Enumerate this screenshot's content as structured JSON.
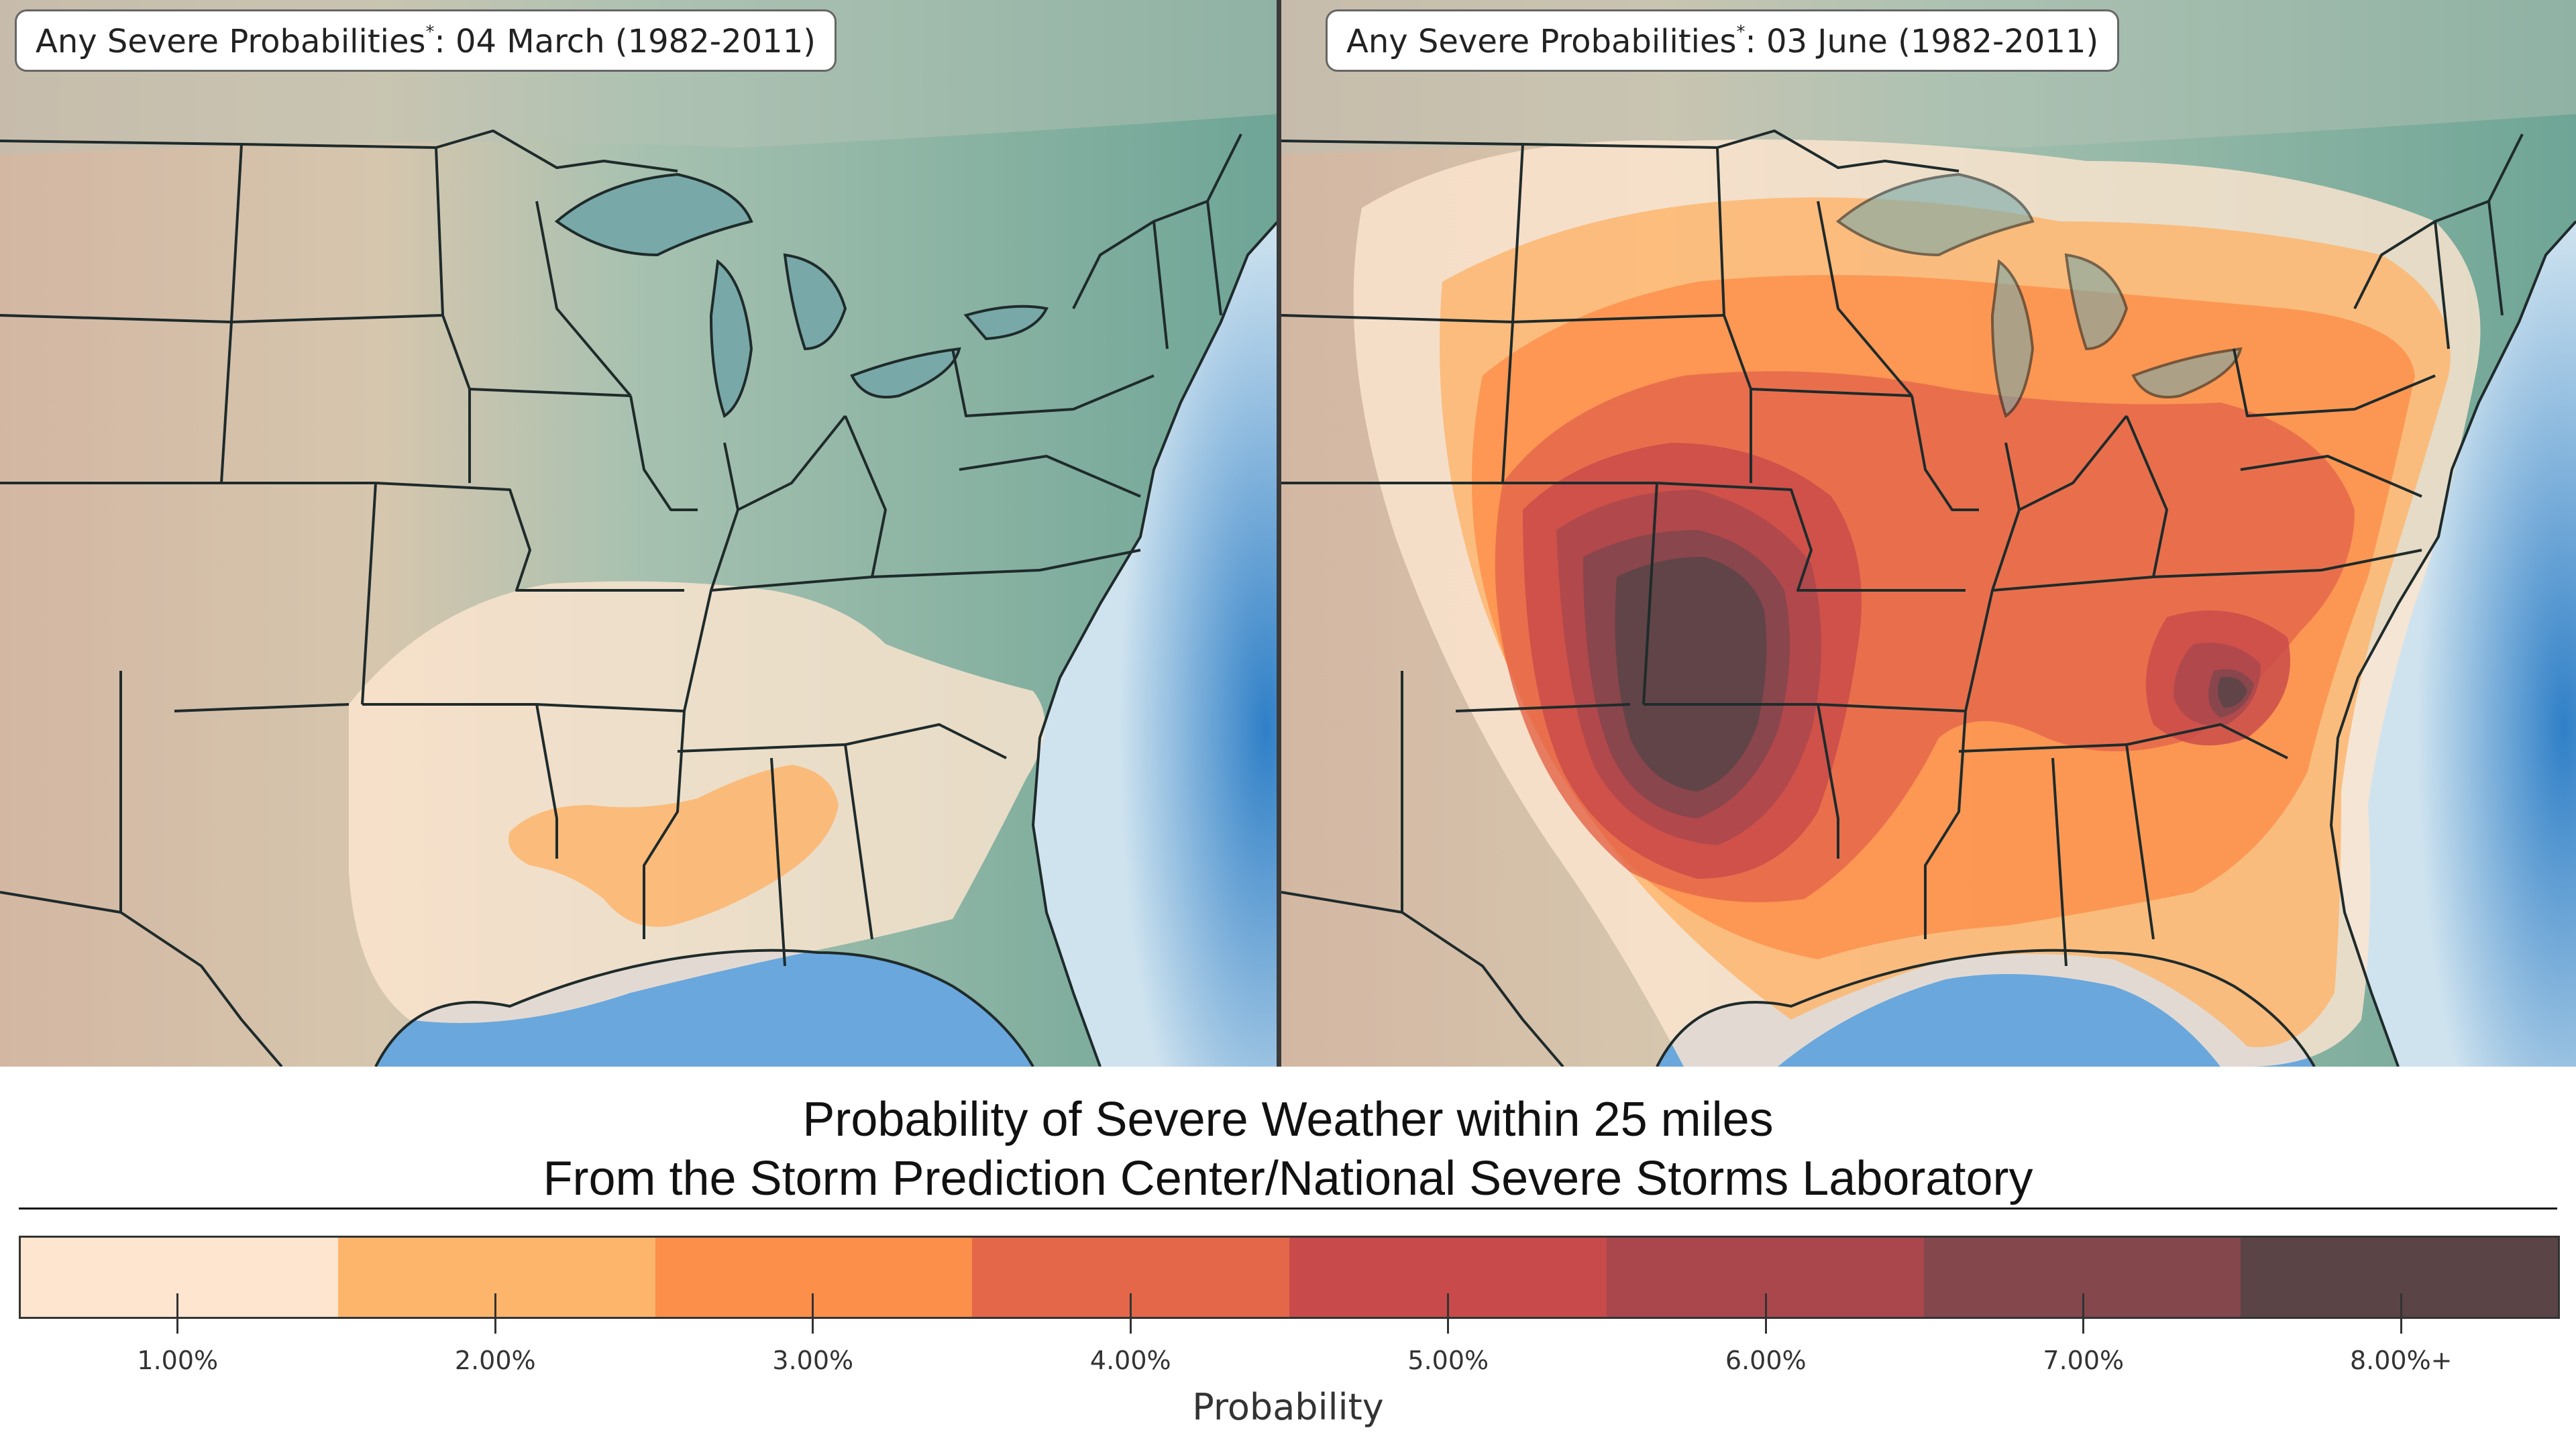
{
  "maps": [
    {
      "title": "Any Severe Probabilities",
      "title_mark": "*",
      "title_suffix": ": 04 March (1982-2011)",
      "probability_areas": [
        "1.00%",
        "2.00%"
      ]
    },
    {
      "title": "Any Severe Probabilities",
      "title_mark": "*",
      "title_suffix": ": 03 June (1982-2011)",
      "probability_areas": [
        "1.00%",
        "2.00%",
        "3.00%",
        "4.00%",
        "5.00%",
        "6.00%",
        "7.00%",
        "8.00%+"
      ]
    }
  ],
  "caption": {
    "line1": "Probability of Severe Weather within 25 miles",
    "line2": "From the Storm Prediction Center/National Severe Storms Laboratory"
  },
  "colorbar": {
    "label": "Probability",
    "levels": [
      {
        "label": "1.00%",
        "color": "#fde5cf"
      },
      {
        "label": "2.00%",
        "color": "#fdb56c"
      },
      {
        "label": "3.00%",
        "color": "#fc8f4a"
      },
      {
        "label": "4.00%",
        "color": "#e4674a"
      },
      {
        "label": "5.00%",
        "color": "#c94a4a"
      },
      {
        "label": "6.00%",
        "color": "#a9474d"
      },
      {
        "label": "7.00%",
        "color": "#83474c"
      },
      {
        "label": "8.00%+",
        "color": "#5a4446"
      }
    ]
  },
  "map_colors": {
    "terrain_west": "#d4b8a4",
    "terrain_east": "#7fb0a4",
    "ocean": "#5e9ed6",
    "lakes": "#78a9a8",
    "borders": "#1f2b2b"
  }
}
